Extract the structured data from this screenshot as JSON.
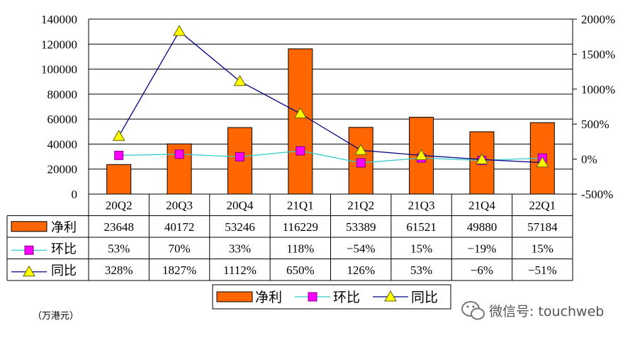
{
  "chart_data": {
    "type": "bar",
    "categories": [
      "20Q2",
      "20Q3",
      "20Q4",
      "21Q1",
      "21Q2",
      "21Q3",
      "21Q4",
      "22Q1"
    ],
    "series": [
      {
        "name": "净利",
        "type": "bar",
        "axis": "left",
        "values": [
          23648,
          40172,
          53246,
          116229,
          53389,
          61521,
          49880,
          57184
        ],
        "labels": [
          "23648",
          "40172",
          "53246",
          "116229",
          "53389",
          "61521",
          "49880",
          "57184"
        ],
        "color": "#ff6600"
      },
      {
        "name": "环比",
        "type": "line",
        "axis": "right",
        "values": [
          53,
          70,
          33,
          118,
          -54,
          15,
          -19,
          15
        ],
        "labels": [
          "53%",
          "70%",
          "33%",
          "118%",
          "−54%",
          "15%",
          "−19%",
          "15%"
        ],
        "color": "#33cccc",
        "marker": "square",
        "marker_color": "#ff00ff"
      },
      {
        "name": "同比",
        "type": "line",
        "axis": "right",
        "values": [
          328,
          1827,
          1112,
          650,
          126,
          53,
          -6,
          -51
        ],
        "labels": [
          "328%",
          "1827%",
          "1112%",
          "650%",
          "126%",
          "53%",
          "−6%",
          "−51%"
        ],
        "color": "#000080",
        "marker": "triangle",
        "marker_color": "#ffff00"
      }
    ],
    "ylim_left": [
      0,
      140000
    ],
    "yticks_left": [
      "0",
      "20000",
      "40000",
      "60000",
      "80000",
      "100000",
      "120000",
      "140000"
    ],
    "ylim_right": [
      -500,
      2000
    ],
    "yticks_right": [
      "-500%",
      "0%",
      "500%",
      "1000%",
      "1500%",
      "2000%"
    ],
    "grid": true,
    "legend_position": "bottom",
    "data_table": true,
    "unit_note": "（万港元）"
  },
  "watermark": "微信号: touchweb"
}
